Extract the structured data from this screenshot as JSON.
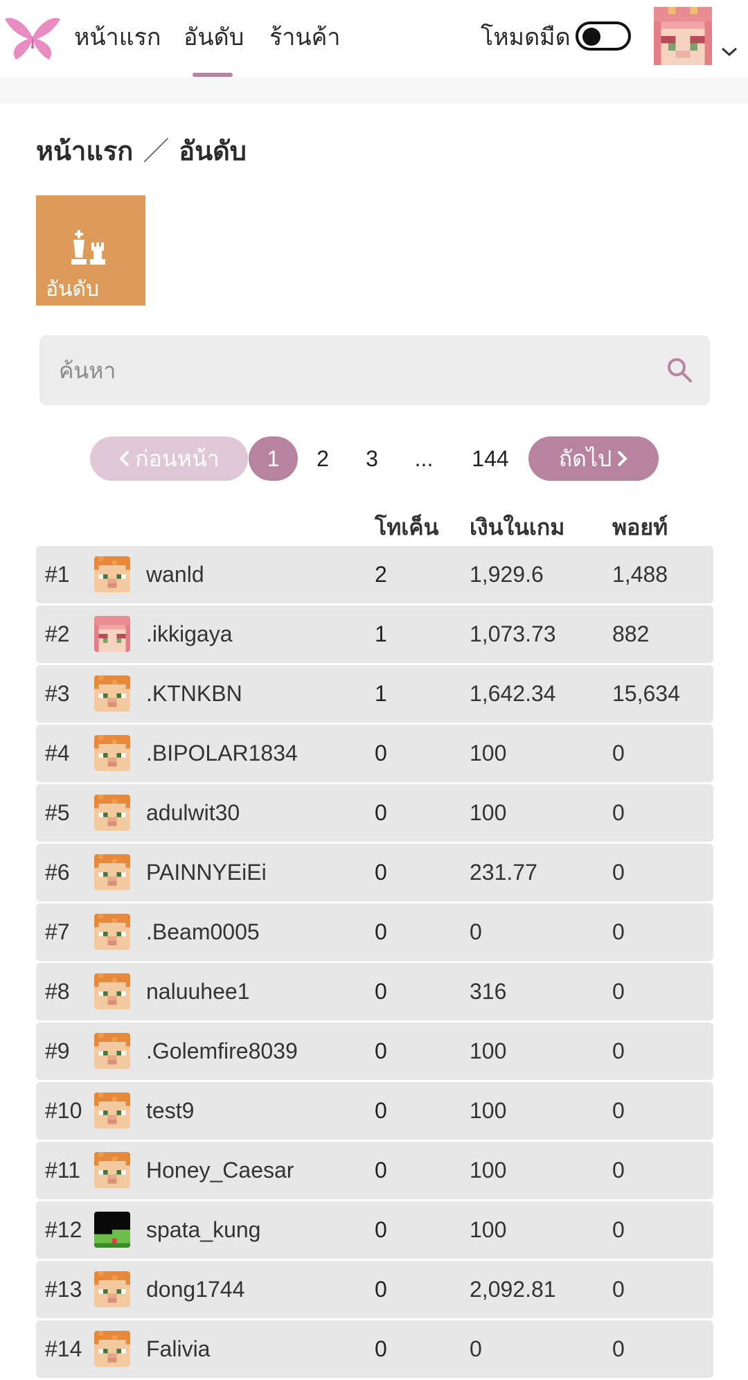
{
  "nav": {
    "home": "หน้าแรก",
    "ranking": "อันดับ",
    "shop": "ร้านค้า",
    "dark_mode_label": "โหมดมืด"
  },
  "breadcrumb": {
    "home": "หน้าแรก",
    "separator": "／",
    "current": "อันดับ"
  },
  "tile": {
    "label": "อันดับ",
    "icon": "chess-icon",
    "color": "#de9a59"
  },
  "search": {
    "placeholder": "ค้นหา",
    "value": ""
  },
  "pagination": {
    "prev": "ก่อนหน้า",
    "current": "1",
    "pages": [
      "2",
      "3",
      "...",
      "144"
    ],
    "next": "ถัดไป"
  },
  "table": {
    "headers": [
      "โทเค็น",
      "เงินในเกม",
      "พอยท์"
    ],
    "rows": [
      {
        "rank": "#1",
        "name": "wanld",
        "tokens": "2",
        "money": "1,929.6",
        "points": "1,488",
        "avatar": "steve-orange"
      },
      {
        "rank": "#2",
        "name": ".ikkigaya",
        "tokens": "1",
        "money": "1,073.73",
        "points": "882",
        "avatar": "pink-girl"
      },
      {
        "rank": "#3",
        "name": ".KTNKBN",
        "tokens": "1",
        "money": "1,642.34",
        "points": "15,634",
        "avatar": "steve-orange"
      },
      {
        "rank": "#4",
        "name": ".BIPOLAR1834",
        "tokens": "0",
        "money": "100",
        "points": "0",
        "avatar": "steve-orange"
      },
      {
        "rank": "#5",
        "name": "adulwit30",
        "tokens": "0",
        "money": "100",
        "points": "0",
        "avatar": "steve-orange"
      },
      {
        "rank": "#6",
        "name": "PAINNYEiEi",
        "tokens": "0",
        "money": "231.77",
        "points": "0",
        "avatar": "steve-orange"
      },
      {
        "rank": "#7",
        "name": ".Beam0005",
        "tokens": "0",
        "money": "0",
        "points": "0",
        "avatar": "steve-orange"
      },
      {
        "rank": "#8",
        "name": "naluuhee1",
        "tokens": "0",
        "money": "316",
        "points": "0",
        "avatar": "steve-orange"
      },
      {
        "rank": "#9",
        "name": ".Golemfire8039",
        "tokens": "0",
        "money": "100",
        "points": "0",
        "avatar": "steve-orange"
      },
      {
        "rank": "#10",
        "name": "test9",
        "tokens": "0",
        "money": "100",
        "points": "0",
        "avatar": "steve-orange"
      },
      {
        "rank": "#11",
        "name": "Honey_Caesar",
        "tokens": "0",
        "money": "100",
        "points": "0",
        "avatar": "steve-orange"
      },
      {
        "rank": "#12",
        "name": "spata_kung",
        "tokens": "0",
        "money": "100",
        "points": "0",
        "avatar": "dark-green"
      },
      {
        "rank": "#13",
        "name": "dong1744",
        "tokens": "0",
        "money": "2,092.81",
        "points": "0",
        "avatar": "steve-orange"
      },
      {
        "rank": "#14",
        "name": "Falivia",
        "tokens": "0",
        "money": "0",
        "points": "0",
        "avatar": "steve-orange"
      }
    ]
  },
  "colors": {
    "accent": "#b7839e",
    "accent_light": "#dfc7d6",
    "row_bg": "#e7e7e7",
    "tile": "#de9a59"
  }
}
